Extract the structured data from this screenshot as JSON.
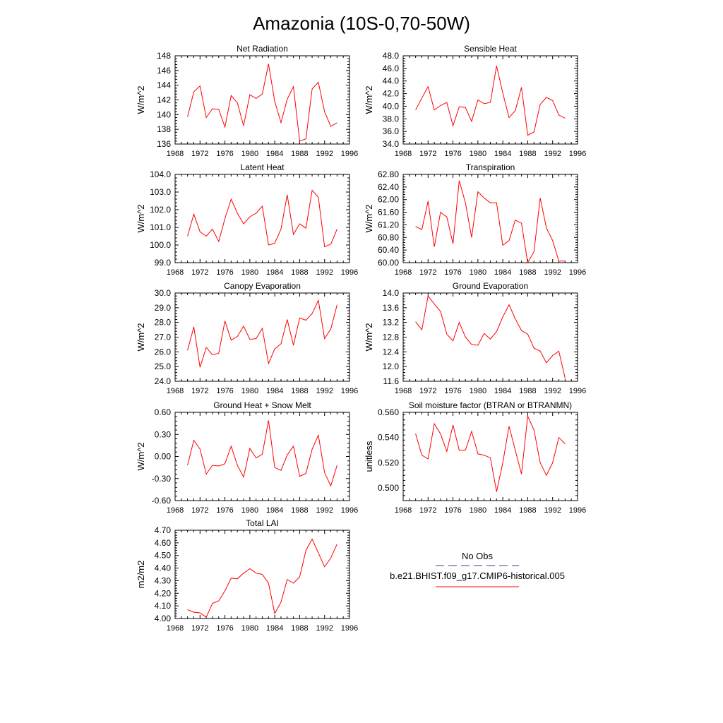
{
  "page": {
    "title": "Amazonia (10S-0,70-50W)"
  },
  "legend": {
    "entries": [
      {
        "label": "No Obs",
        "color": "#3a3aa0",
        "dash": true
      },
      {
        "label": "b.e21.BHIST.f09_g17.CMIP6-historical.005",
        "color": "#ff0000",
        "dash": false
      }
    ]
  },
  "chart_data": [
    {
      "type": "line",
      "title": "Net Radiation",
      "ylabel": "W/m^2",
      "xlim": [
        1968,
        1996
      ],
      "xticks": [
        1968,
        1972,
        1976,
        1980,
        1984,
        1988,
        1992,
        1996
      ],
      "ylim": [
        136,
        148
      ],
      "yticks": [
        "136",
        "138",
        "140",
        "142",
        "144",
        "146",
        "148"
      ],
      "series": [
        {
          "color": "#ff0000",
          "x": [
            1970,
            1971,
            1972,
            1973,
            1974,
            1975,
            1976,
            1977,
            1978,
            1979,
            1980,
            1981,
            1982,
            1983,
            1984,
            1985,
            1986,
            1987,
            1988,
            1989,
            1990,
            1991,
            1992,
            1993,
            1994
          ],
          "y": [
            139.7,
            143.1,
            143.9,
            139.6,
            140.8,
            140.7,
            138.3,
            142.6,
            141.6,
            138.5,
            142.7,
            142.2,
            142.8,
            146.9,
            141.8,
            138.9,
            142.1,
            143.8,
            136.4,
            136.7,
            143.5,
            144.4,
            140.4,
            138.4,
            138.9
          ]
        }
      ]
    },
    {
      "type": "line",
      "title": "Sensible Heat",
      "ylabel": "W/m^2",
      "xlim": [
        1968,
        1996
      ],
      "xticks": [
        1968,
        1972,
        1976,
        1980,
        1984,
        1988,
        1992,
        1996
      ],
      "ylim": [
        34,
        48
      ],
      "yticks": [
        "34.0",
        "36.0",
        "38.0",
        "40.0",
        "42.0",
        "44.0",
        "46.0",
        "48.0"
      ],
      "series": [
        {
          "color": "#ff0000",
          "x": [
            1970,
            1971,
            1972,
            1973,
            1974,
            1975,
            1976,
            1977,
            1978,
            1979,
            1980,
            1981,
            1982,
            1983,
            1984,
            1985,
            1986,
            1987,
            1988,
            1989,
            1990,
            1991,
            1992,
            1993,
            1994
          ],
          "y": [
            39.4,
            41.3,
            43.1,
            39.4,
            40.1,
            40.6,
            36.9,
            39.9,
            39.8,
            37.6,
            41.0,
            40.4,
            40.6,
            46.4,
            42.1,
            38.2,
            39.3,
            43.0,
            35.4,
            35.9,
            40.3,
            41.4,
            40.9,
            38.6,
            38.1
          ]
        }
      ]
    },
    {
      "type": "line",
      "title": "Latent Heat",
      "ylabel": "W/m^2",
      "xlim": [
        1968,
        1996
      ],
      "xticks": [
        1968,
        1972,
        1976,
        1980,
        1984,
        1988,
        1992,
        1996
      ],
      "ylim": [
        99,
        104
      ],
      "yticks": [
        "99.0",
        "100.0",
        "101.0",
        "102.0",
        "103.0",
        "104.0"
      ],
      "series": [
        {
          "color": "#ff0000",
          "x": [
            1970,
            1971,
            1972,
            1973,
            1974,
            1975,
            1976,
            1977,
            1978,
            1979,
            1980,
            1981,
            1982,
            1983,
            1984,
            1985,
            1986,
            1987,
            1988,
            1989,
            1990,
            1991,
            1992,
            1993,
            1994
          ],
          "y": [
            100.5,
            101.75,
            100.75,
            100.5,
            100.9,
            100.2,
            101.5,
            102.6,
            101.8,
            101.2,
            101.6,
            101.8,
            102.2,
            100.0,
            100.1,
            100.9,
            102.85,
            100.6,
            101.2,
            100.95,
            103.1,
            102.7,
            99.9,
            100.05,
            100.9
          ]
        }
      ]
    },
    {
      "type": "line",
      "title": "Transpiration",
      "ylabel": "W/m^2",
      "xlim": [
        1968,
        1996
      ],
      "xticks": [
        1968,
        1972,
        1976,
        1980,
        1984,
        1988,
        1992,
        1996
      ],
      "ylim": [
        60.0,
        62.8
      ],
      "yticks": [
        "60.00",
        "60.40",
        "60.80",
        "61.20",
        "61.60",
        "62.00",
        "62.40",
        "62.80"
      ],
      "series": [
        {
          "color": "#ff0000",
          "x": [
            1970,
            1971,
            1972,
            1973,
            1974,
            1975,
            1976,
            1977,
            1978,
            1979,
            1980,
            1981,
            1982,
            1983,
            1984,
            1985,
            1986,
            1987,
            1988,
            1989,
            1990,
            1991,
            1992,
            1993,
            1994
          ],
          "y": [
            61.15,
            61.05,
            61.95,
            60.5,
            61.6,
            61.45,
            60.6,
            62.6,
            61.9,
            60.8,
            62.25,
            62.05,
            61.9,
            61.9,
            60.55,
            60.7,
            61.35,
            61.25,
            60.0,
            60.35,
            62.05,
            61.1,
            60.7,
            60.05,
            60.05
          ]
        }
      ]
    },
    {
      "type": "line",
      "title": "Canopy Evaporation",
      "ylabel": "W/m^2",
      "xlim": [
        1968,
        1996
      ],
      "xticks": [
        1968,
        1972,
        1976,
        1980,
        1984,
        1988,
        1992,
        1996
      ],
      "ylim": [
        24,
        30
      ],
      "yticks": [
        "24.0",
        "25.0",
        "26.0",
        "27.0",
        "28.0",
        "29.0",
        "30.0"
      ],
      "series": [
        {
          "color": "#ff0000",
          "x": [
            1970,
            1971,
            1972,
            1973,
            1974,
            1975,
            1976,
            1977,
            1978,
            1979,
            1980,
            1981,
            1982,
            1983,
            1984,
            1985,
            1986,
            1987,
            1988,
            1989,
            1990,
            1991,
            1992,
            1993,
            1994
          ],
          "y": [
            26.1,
            27.7,
            24.95,
            26.3,
            25.8,
            25.9,
            28.1,
            26.8,
            27.05,
            27.75,
            26.85,
            26.9,
            27.6,
            25.2,
            26.2,
            26.55,
            28.2,
            26.45,
            28.3,
            28.15,
            28.6,
            29.5,
            26.9,
            27.55,
            29.2
          ]
        }
      ]
    },
    {
      "type": "line",
      "title": "Ground Evaporation",
      "ylabel": "W/m^2",
      "xlim": [
        1968,
        1996
      ],
      "xticks": [
        1968,
        1972,
        1976,
        1980,
        1984,
        1988,
        1992,
        1996
      ],
      "ylim": [
        11.6,
        14.0
      ],
      "yticks": [
        "11.6",
        "12.0",
        "12.4",
        "12.8",
        "13.2",
        "13.6",
        "14.0"
      ],
      "series": [
        {
          "color": "#ff0000",
          "x": [
            1970,
            1971,
            1972,
            1973,
            1974,
            1975,
            1976,
            1977,
            1978,
            1979,
            1980,
            1981,
            1982,
            1983,
            1984,
            1985,
            1986,
            1987,
            1988,
            1989,
            1990,
            1991,
            1992,
            1993,
            1994
          ],
          "y": [
            13.22,
            13.0,
            13.92,
            13.7,
            13.5,
            12.88,
            12.7,
            13.2,
            12.8,
            12.6,
            12.58,
            12.9,
            12.75,
            12.95,
            13.35,
            13.68,
            13.3,
            12.98,
            12.88,
            12.5,
            12.42,
            12.1,
            12.3,
            12.42,
            11.68
          ]
        }
      ]
    },
    {
      "type": "line",
      "title": "Ground Heat + Snow Melt",
      "ylabel": "W/m^2",
      "xlim": [
        1968,
        1996
      ],
      "xticks": [
        1968,
        1972,
        1976,
        1980,
        1984,
        1988,
        1992,
        1996
      ],
      "ylim": [
        -0.6,
        0.6
      ],
      "yticks": [
        "-0.60",
        "-0.30",
        "0.00",
        "0.30",
        "0.60"
      ],
      "series": [
        {
          "color": "#ff0000",
          "x": [
            1970,
            1971,
            1972,
            1973,
            1974,
            1975,
            1976,
            1977,
            1978,
            1979,
            1980,
            1981,
            1982,
            1983,
            1984,
            1985,
            1986,
            1987,
            1988,
            1989,
            1990,
            1991,
            1992,
            1993,
            1994
          ],
          "y": [
            -0.12,
            0.22,
            0.1,
            -0.24,
            -0.12,
            -0.13,
            -0.1,
            0.14,
            -0.12,
            -0.28,
            0.11,
            -0.02,
            0.03,
            0.49,
            -0.15,
            -0.19,
            0.02,
            0.14,
            -0.27,
            -0.23,
            0.1,
            0.29,
            -0.22,
            -0.4,
            -0.12
          ]
        }
      ]
    },
    {
      "type": "line",
      "title": "Soil moisture factor (BTRAN or BTRANMN)",
      "ylabel": "unitless",
      "xlim": [
        1968,
        1996
      ],
      "xticks": [
        1968,
        1972,
        1976,
        1980,
        1984,
        1988,
        1992,
        1996
      ],
      "ylim": [
        0.49,
        0.56
      ],
      "yticks": [
        "0.500",
        "0.520",
        "0.540",
        "0.560"
      ],
      "ytick_values": [
        0.5,
        0.52,
        0.54,
        0.56
      ],
      "series": [
        {
          "color": "#ff0000",
          "x": [
            1970,
            1971,
            1972,
            1973,
            1974,
            1975,
            1976,
            1977,
            1978,
            1979,
            1980,
            1981,
            1982,
            1983,
            1984,
            1985,
            1986,
            1987,
            1988,
            1989,
            1990,
            1991,
            1992,
            1993,
            1994
          ],
          "y": [
            0.543,
            0.526,
            0.523,
            0.551,
            0.543,
            0.529,
            0.55,
            0.53,
            0.53,
            0.545,
            0.527,
            0.526,
            0.524,
            0.497,
            0.52,
            0.549,
            0.53,
            0.511,
            0.557,
            0.546,
            0.52,
            0.51,
            0.52,
            0.54,
            0.535
          ]
        }
      ]
    },
    {
      "type": "line",
      "title": "Total LAI",
      "ylabel": "m2/m2",
      "xlim": [
        1968,
        1996
      ],
      "xticks": [
        1968,
        1972,
        1976,
        1980,
        1984,
        1988,
        1992,
        1996
      ],
      "ylim": [
        4.0,
        4.7
      ],
      "yticks": [
        "4.00",
        "4.10",
        "4.20",
        "4.30",
        "4.40",
        "4.50",
        "4.60",
        "4.70"
      ],
      "series": [
        {
          "color": "#ff0000",
          "x": [
            1970,
            1971,
            1972,
            1973,
            1974,
            1975,
            1976,
            1977,
            1978,
            1979,
            1980,
            1981,
            1982,
            1983,
            1984,
            1985,
            1986,
            1987,
            1988,
            1989,
            1990,
            1991,
            1992,
            1993,
            1994
          ],
          "y": [
            4.07,
            4.05,
            4.045,
            4.01,
            4.12,
            4.14,
            4.22,
            4.32,
            4.315,
            4.36,
            4.395,
            4.36,
            4.35,
            4.28,
            4.04,
            4.13,
            4.31,
            4.28,
            4.33,
            4.54,
            4.63,
            4.52,
            4.41,
            4.48,
            4.59
          ]
        }
      ]
    }
  ]
}
